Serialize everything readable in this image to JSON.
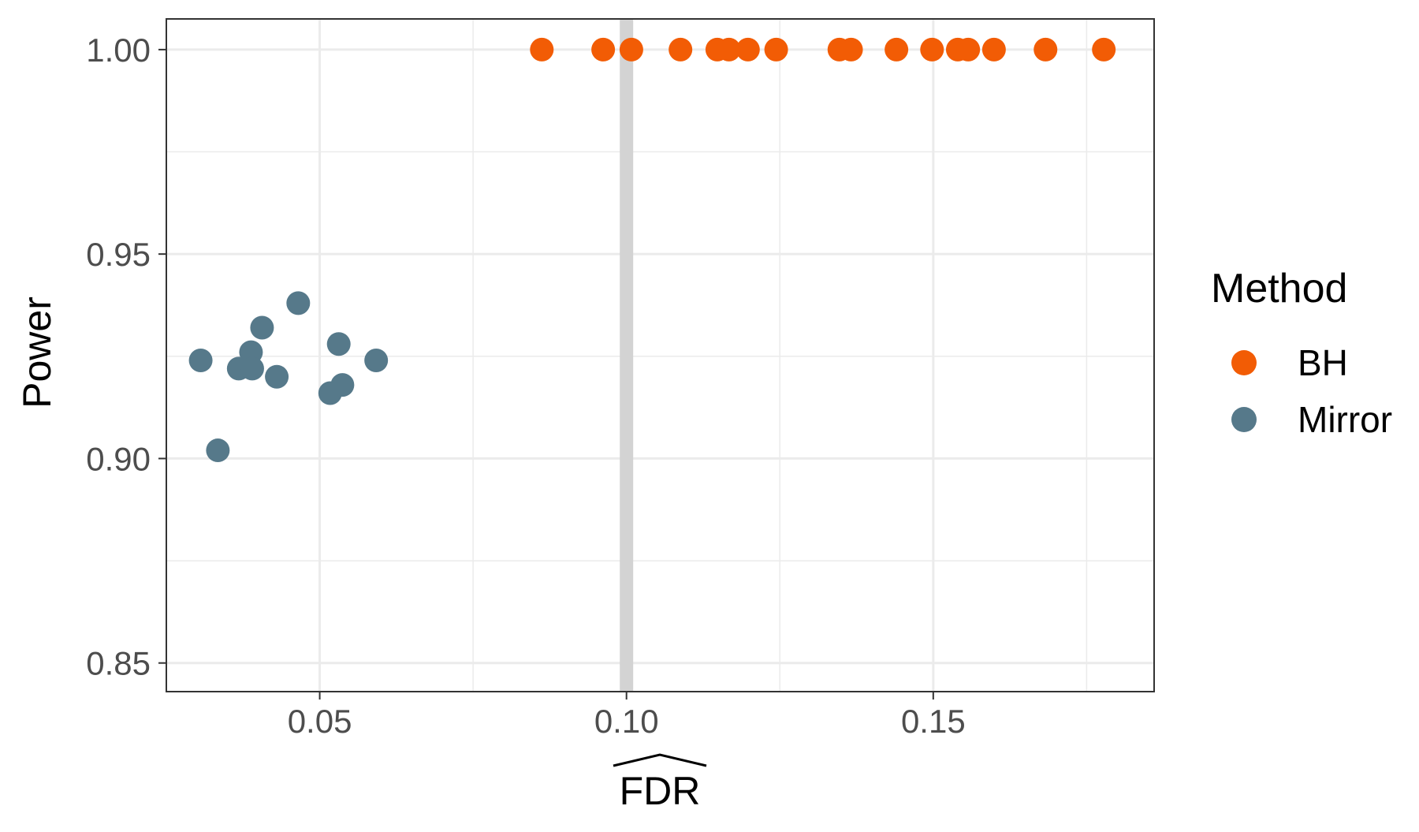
{
  "chart_data": {
    "type": "scatter",
    "xlabel": "FDR",
    "ylabel": "Power",
    "xlim": [
      0.025,
      0.186
    ],
    "ylim": [
      0.843,
      1.0075
    ],
    "x_ticks": [
      0.05,
      0.1,
      0.15
    ],
    "x_tick_labels": [
      "0.05",
      "0.10",
      "0.15"
    ],
    "y_ticks": [
      0.85,
      0.9,
      0.95,
      1.0
    ],
    "y_tick_labels": [
      "0.85",
      "0.90",
      "0.95",
      "1.00"
    ],
    "grid": true,
    "reference_line": {
      "axis": "x",
      "value": 0.1,
      "color": "#d3d3d3"
    },
    "legend": {
      "title": "Method",
      "position": "right"
    },
    "series": [
      {
        "name": "BH",
        "color": "#f25c05",
        "points": [
          [
            0.0862,
            1.0
          ],
          [
            0.0962,
            1.0
          ],
          [
            0.1008,
            1.0
          ],
          [
            0.1088,
            1.0
          ],
          [
            0.1148,
            1.0
          ],
          [
            0.1167,
            1.0
          ],
          [
            0.1198,
            1.0
          ],
          [
            0.1244,
            1.0
          ],
          [
            0.1347,
            1.0
          ],
          [
            0.1366,
            1.0
          ],
          [
            0.144,
            1.0
          ],
          [
            0.1498,
            1.0
          ],
          [
            0.154,
            1.0
          ],
          [
            0.1557,
            1.0
          ],
          [
            0.1599,
            1.0
          ],
          [
            0.1683,
            1.0
          ],
          [
            0.1778,
            1.0
          ]
        ]
      },
      {
        "name": "Mirror",
        "color": "#56798a",
        "points": [
          [
            0.0306,
            0.924
          ],
          [
            0.0334,
            0.902
          ],
          [
            0.0368,
            0.922
          ],
          [
            0.0388,
            0.926
          ],
          [
            0.039,
            0.922
          ],
          [
            0.0406,
            0.932
          ],
          [
            0.043,
            0.92
          ],
          [
            0.0465,
            0.938
          ],
          [
            0.0517,
            0.916
          ],
          [
            0.0531,
            0.928
          ],
          [
            0.0537,
            0.918
          ],
          [
            0.0592,
            0.924
          ]
        ]
      }
    ]
  }
}
